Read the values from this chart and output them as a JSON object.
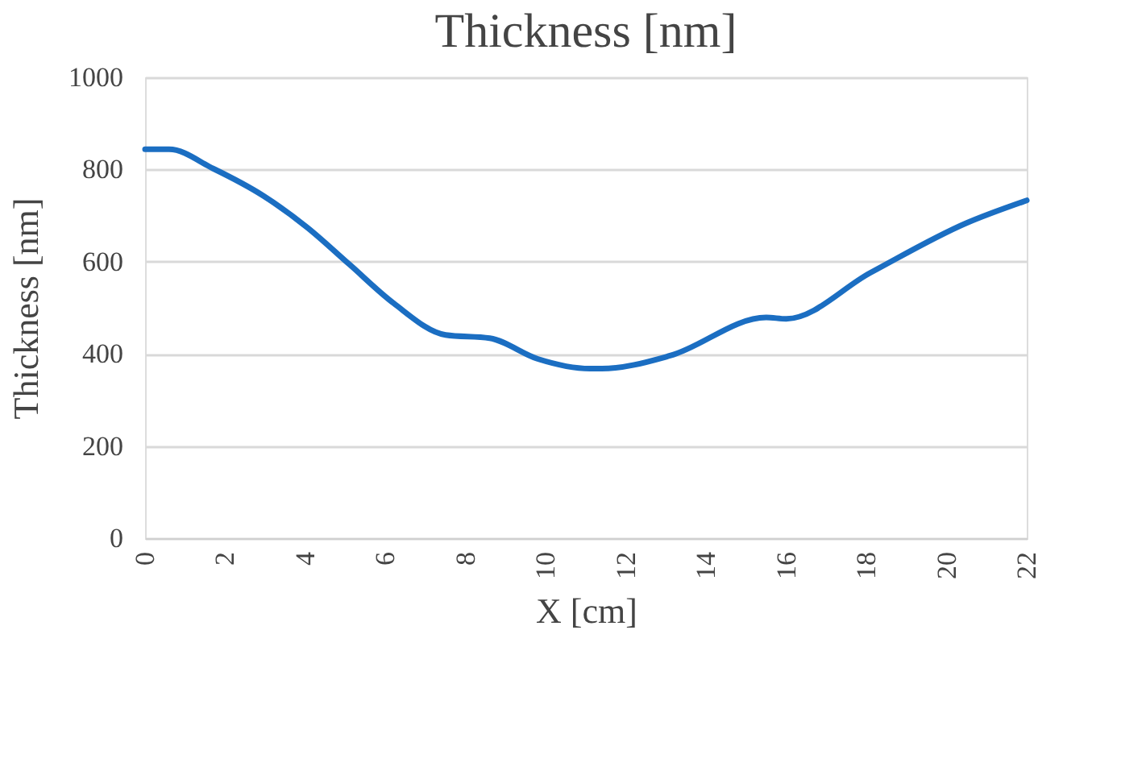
{
  "chart_data": {
    "type": "line",
    "title": "Thickness [nm]",
    "xlabel": "X [cm]",
    "ylabel": "Thickness [nm]",
    "x": [
      0,
      0.6,
      1.7,
      2.95,
      4.05,
      5.1,
      6.2,
      7.5,
      8.6,
      9.8,
      11.1,
      11.4,
      13.1,
      15.5,
      16.0,
      18.1,
      20.5,
      22.0
    ],
    "series": [
      {
        "color": "#1b6ec2",
        "values": [
          844,
          844,
          802,
          743,
          674,
          594,
          510,
          441,
          434,
          389,
          368,
          368,
          396,
          479,
          476,
          576,
          684,
          733
        ]
      }
    ],
    "xlim": [
      0,
      22
    ],
    "xticks": [
      0,
      2,
      4,
      6,
      8,
      10,
      12,
      14,
      16,
      18,
      20,
      22
    ],
    "ylim": [
      0,
      1000
    ],
    "yticks": [
      0,
      200,
      400,
      600,
      800,
      1000
    ],
    "grid": "y",
    "legend": false,
    "marker": "none",
    "line_style": "solid"
  }
}
